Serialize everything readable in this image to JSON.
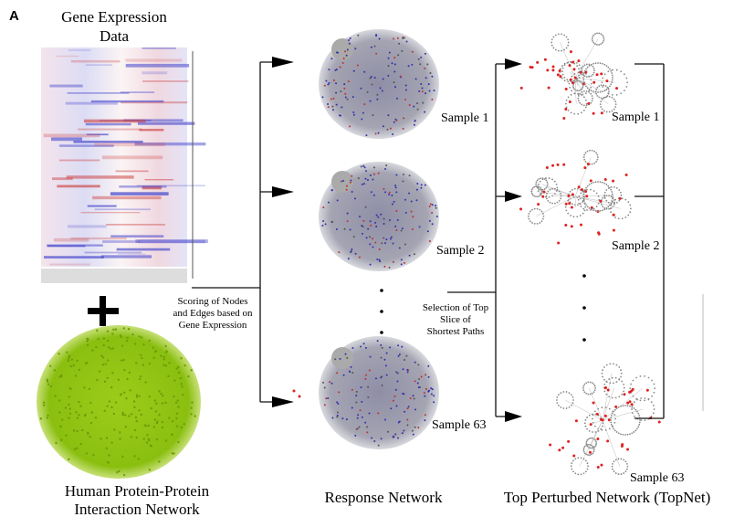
{
  "panel_label": "A",
  "heatmap": {
    "title": [
      "Gene Expression",
      "Data"
    ]
  },
  "ppi": {
    "label": [
      "Human Protein-Protein",
      "Interaction Network"
    ]
  },
  "scoring": {
    "lines": [
      "Scoring of Nodes",
      "and Edges based on",
      "Gene Expression"
    ]
  },
  "response": {
    "title": "Response Network",
    "samples": [
      "Sample 1",
      "Sample 2",
      "Sample 63"
    ]
  },
  "selection": {
    "lines": [
      "Selection of  Top",
      "Slice of",
      "Shortest Paths"
    ]
  },
  "topnet": {
    "title": "Top Perturbed Network (TopNet)",
    "samples": [
      "Sample 1",
      "Sample 2",
      "Sample 63"
    ]
  }
}
